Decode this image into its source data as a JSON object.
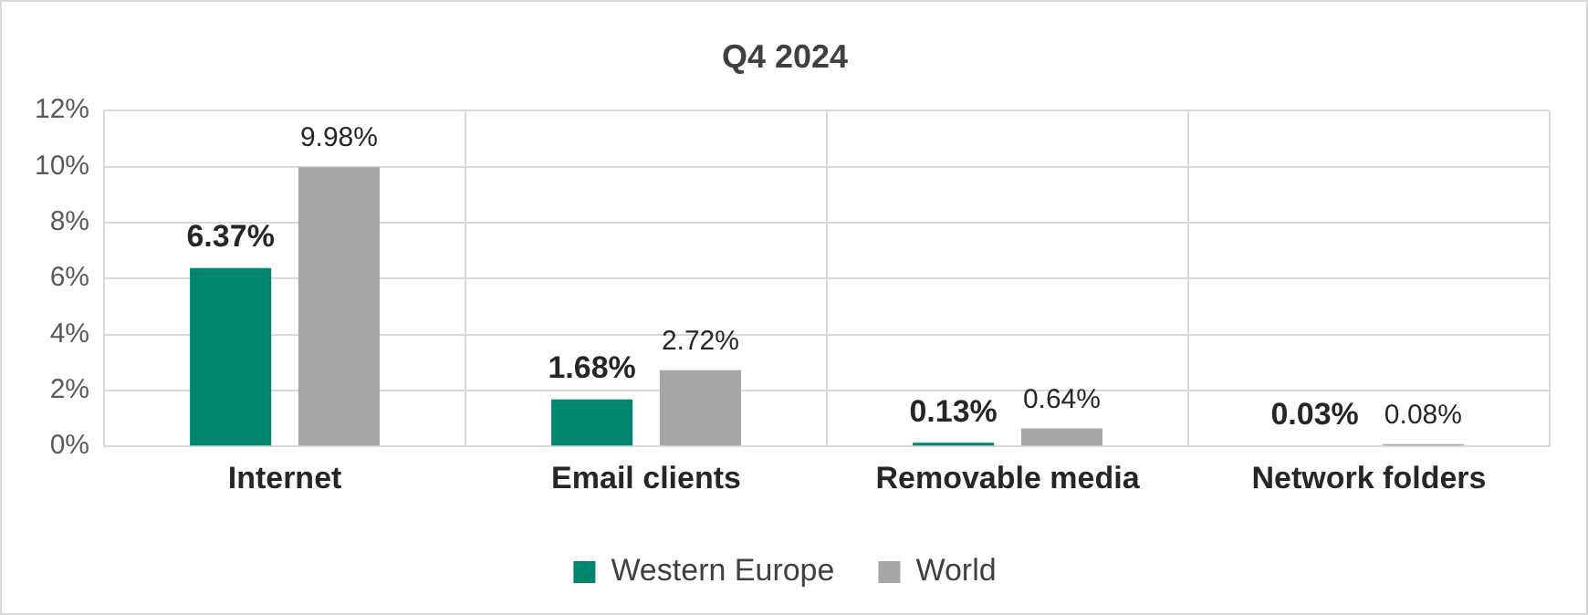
{
  "chart_data": {
    "type": "bar",
    "title": "Q4 2024",
    "categories": [
      "Internet",
      "Email clients",
      "Removable media",
      "Network folders"
    ],
    "series": [
      {
        "name": "Western Europe",
        "color": "#00856f",
        "values": [
          6.37,
          1.68,
          0.13,
          0.03
        ],
        "value_labels": [
          "6.37%",
          "1.68%",
          "0.13%",
          "0.03%"
        ]
      },
      {
        "name": "World",
        "color": "#a6a6a6",
        "values": [
          9.98,
          2.72,
          0.64,
          0.08
        ],
        "value_labels": [
          "9.98%",
          "2.72%",
          "0.64%",
          "0.08%"
        ]
      }
    ],
    "ylim": [
      0,
      12
    ],
    "yticks": [
      {
        "value": 0,
        "label": "0%"
      },
      {
        "value": 2,
        "label": "2%"
      },
      {
        "value": 4,
        "label": "4%"
      },
      {
        "value": 6,
        "label": "6%"
      },
      {
        "value": 8,
        "label": "8%"
      },
      {
        "value": 10,
        "label": "10%"
      },
      {
        "value": 12,
        "label": "12%"
      }
    ],
    "grid": true,
    "legend": "bottom"
  }
}
